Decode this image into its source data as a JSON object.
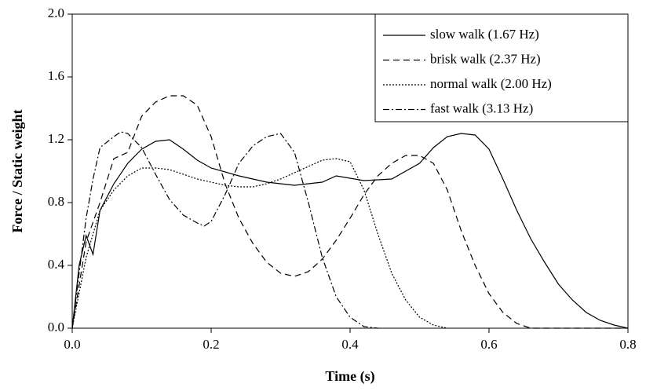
{
  "chart_data": {
    "type": "line",
    "xlabel": "Time (s)",
    "ylabel": "Force / Static weight",
    "xlim": [
      0,
      0.8
    ],
    "ylim": [
      0,
      2.0
    ],
    "xticks": [
      {
        "value": 0,
        "label": "0.0"
      },
      0.2,
      0.4,
      0.6,
      0.8
    ],
    "yticks": [
      {
        "value": 0,
        "label": "0.0"
      },
      0.4,
      0.8,
      1.2,
      1.6,
      {
        "value": 2,
        "label": "2.0"
      }
    ],
    "legend": "upper right",
    "series": [
      {
        "name": "slow walk (1.67 Hz)",
        "color": "#000000",
        "dash": "none",
        "x": [
          0,
          0.01,
          0.02,
          0.03,
          0.04,
          0.06,
          0.08,
          0.1,
          0.12,
          0.14,
          0.16,
          0.18,
          0.2,
          0.24,
          0.28,
          0.32,
          0.36,
          0.38,
          0.42,
          0.46,
          0.5,
          0.52,
          0.54,
          0.56,
          0.58,
          0.6,
          0.62,
          0.64,
          0.66,
          0.68,
          0.7,
          0.72,
          0.74,
          0.76,
          0.78,
          0.8
        ],
        "values": [
          0,
          0.4,
          0.59,
          0.47,
          0.75,
          0.92,
          1.05,
          1.14,
          1.19,
          1.2,
          1.14,
          1.07,
          1.02,
          0.97,
          0.93,
          0.91,
          0.93,
          0.97,
          0.94,
          0.95,
          1.05,
          1.15,
          1.22,
          1.24,
          1.23,
          1.14,
          0.95,
          0.75,
          0.57,
          0.42,
          0.28,
          0.18,
          0.1,
          0.05,
          0.02,
          0
        ]
      },
      {
        "name": "brisk walk (2.37 Hz)",
        "color": "#000000",
        "dash": "8,5",
        "x": [
          0,
          0.02,
          0.04,
          0.06,
          0.08,
          0.1,
          0.12,
          0.14,
          0.16,
          0.18,
          0.2,
          0.22,
          0.24,
          0.26,
          0.28,
          0.3,
          0.32,
          0.34,
          0.36,
          0.38,
          0.4,
          0.42,
          0.44,
          0.46,
          0.48,
          0.5,
          0.52,
          0.54,
          0.56,
          0.58,
          0.6,
          0.62,
          0.64,
          0.66,
          0.7,
          0.8
        ],
        "values": [
          0,
          0.55,
          0.8,
          1.08,
          1.12,
          1.35,
          1.44,
          1.48,
          1.48,
          1.42,
          1.22,
          0.92,
          0.7,
          0.54,
          0.42,
          0.35,
          0.33,
          0.36,
          0.44,
          0.56,
          0.7,
          0.85,
          0.97,
          1.05,
          1.1,
          1.1,
          1.05,
          0.88,
          0.62,
          0.4,
          0.22,
          0.1,
          0.03,
          0,
          0,
          0
        ]
      },
      {
        "name": "normal walk (2.00 Hz)",
        "color": "#000000",
        "dash": "2,2",
        "x": [
          0,
          0.02,
          0.04,
          0.06,
          0.08,
          0.1,
          0.12,
          0.14,
          0.16,
          0.18,
          0.2,
          0.22,
          0.24,
          0.26,
          0.28,
          0.3,
          0.32,
          0.34,
          0.36,
          0.38,
          0.4,
          0.42,
          0.44,
          0.46,
          0.48,
          0.5,
          0.52,
          0.54
        ],
        "values": [
          0,
          0.45,
          0.75,
          0.88,
          0.97,
          1.02,
          1.02,
          1.01,
          0.98,
          0.95,
          0.93,
          0.91,
          0.9,
          0.9,
          0.92,
          0.95,
          0.99,
          1.03,
          1.07,
          1.08,
          1.06,
          0.88,
          0.6,
          0.35,
          0.18,
          0.07,
          0.02,
          0
        ]
      },
      {
        "name": "fast walk (3.13 Hz)",
        "color": "#000000",
        "dash": "8,3,2,3",
        "x": [
          0,
          0.01,
          0.02,
          0.03,
          0.04,
          0.06,
          0.07,
          0.08,
          0.1,
          0.12,
          0.14,
          0.16,
          0.18,
          0.19,
          0.2,
          0.22,
          0.24,
          0.26,
          0.28,
          0.3,
          0.32,
          0.34,
          0.36,
          0.38,
          0.4,
          0.42,
          0.44
        ],
        "values": [
          0,
          0.35,
          0.7,
          0.95,
          1.15,
          1.22,
          1.25,
          1.24,
          1.15,
          0.98,
          0.82,
          0.72,
          0.67,
          0.65,
          0.68,
          0.85,
          1.05,
          1.16,
          1.22,
          1.24,
          1.12,
          0.8,
          0.45,
          0.2,
          0.07,
          0.01,
          0
        ]
      }
    ]
  }
}
